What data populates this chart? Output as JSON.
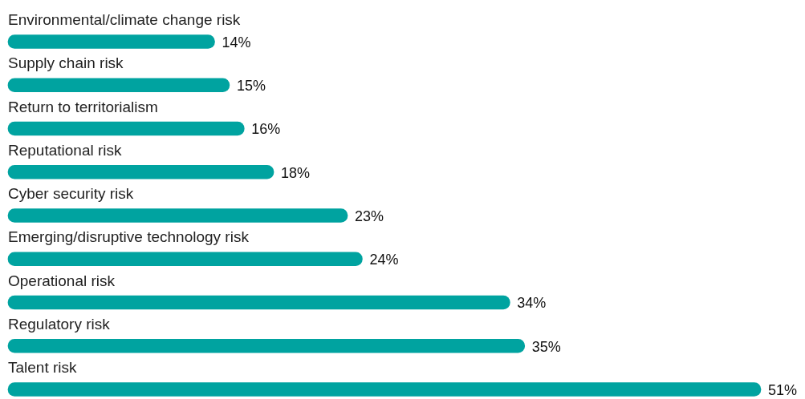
{
  "chart_data": {
    "type": "bar",
    "orientation": "horizontal",
    "categories": [
      "Environmental/climate change risk",
      "Supply chain risk",
      "Return to territorialism",
      "Reputational risk",
      "Cyber security risk",
      "Emerging/disruptive technology risk",
      "Operational risk",
      "Regulatory risk",
      "Talent risk"
    ],
    "values": [
      14,
      15,
      16,
      18,
      23,
      24,
      34,
      35,
      51
    ],
    "value_labels": [
      "14%",
      "15%",
      "16%",
      "18%",
      "23%",
      "24%",
      "34%",
      "35%",
      "51%"
    ],
    "color": "#00a3a0"
  }
}
